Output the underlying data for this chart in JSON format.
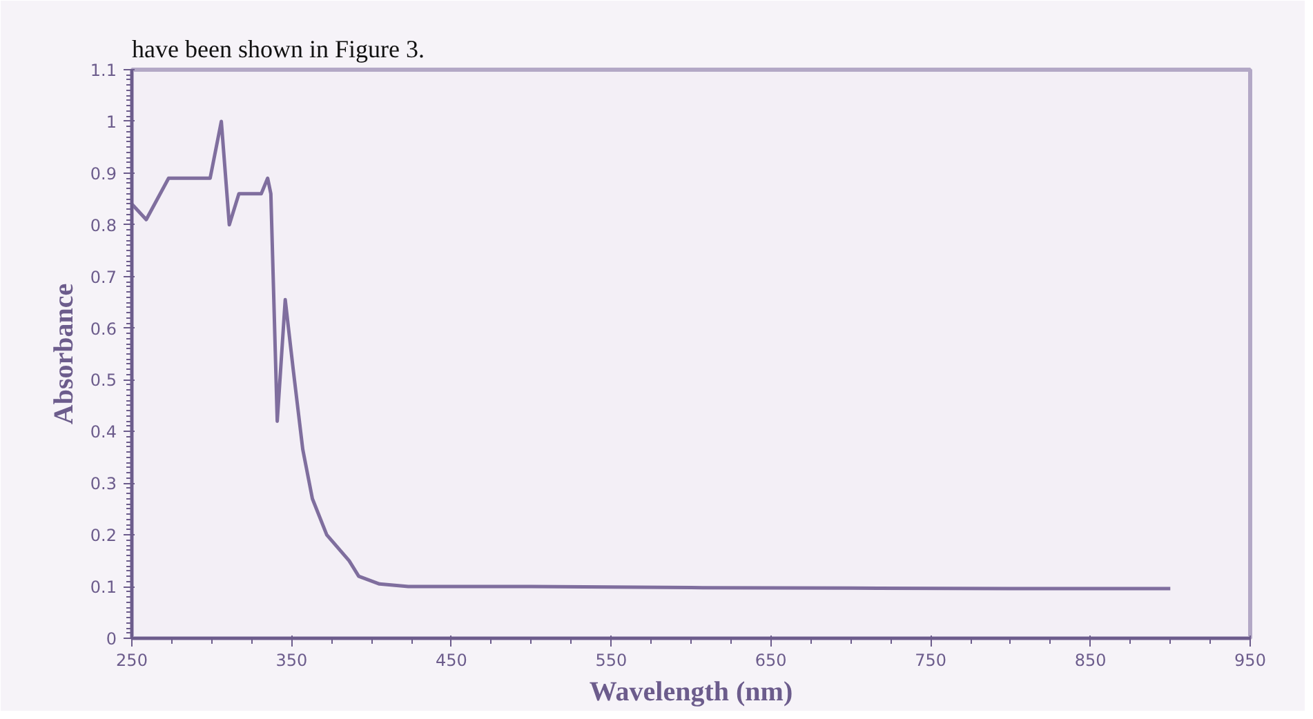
{
  "chart_data": {
    "type": "line",
    "xlabel": "Wavelength (nm)",
    "ylabel": "Absorbance",
    "annotations": [
      "have been shown in Figure 3."
    ],
    "x": [
      250,
      253,
      259,
      273,
      299,
      306,
      311,
      317,
      331,
      335,
      337,
      341,
      346,
      351,
      357,
      363,
      372,
      386,
      392,
      405,
      423,
      500,
      600,
      700,
      800,
      900
    ],
    "series": [
      {
        "color": "#7f6e9e",
        "values": [
          0.84,
          0.83,
          0.81,
          0.89,
          0.89,
          1.0,
          0.8,
          0.86,
          0.86,
          0.89,
          0.86,
          0.42,
          0.655,
          0.52,
          0.365,
          0.27,
          0.2,
          0.15,
          0.12,
          0.105,
          0.1,
          0.1,
          0.098,
          0.097,
          0.096,
          0.096
        ]
      }
    ],
    "xlim": [
      250,
      950
    ],
    "xticks": [
      250,
      350,
      450,
      550,
      650,
      750,
      850,
      950
    ],
    "ylim": [
      0,
      1.1
    ],
    "yticks": [
      0,
      0.1,
      0.2,
      0.3,
      0.4,
      0.5,
      0.6,
      0.7,
      0.8,
      0.9,
      1,
      1.1
    ],
    "grid": false,
    "marker": "none",
    "line_style": "solid"
  }
}
